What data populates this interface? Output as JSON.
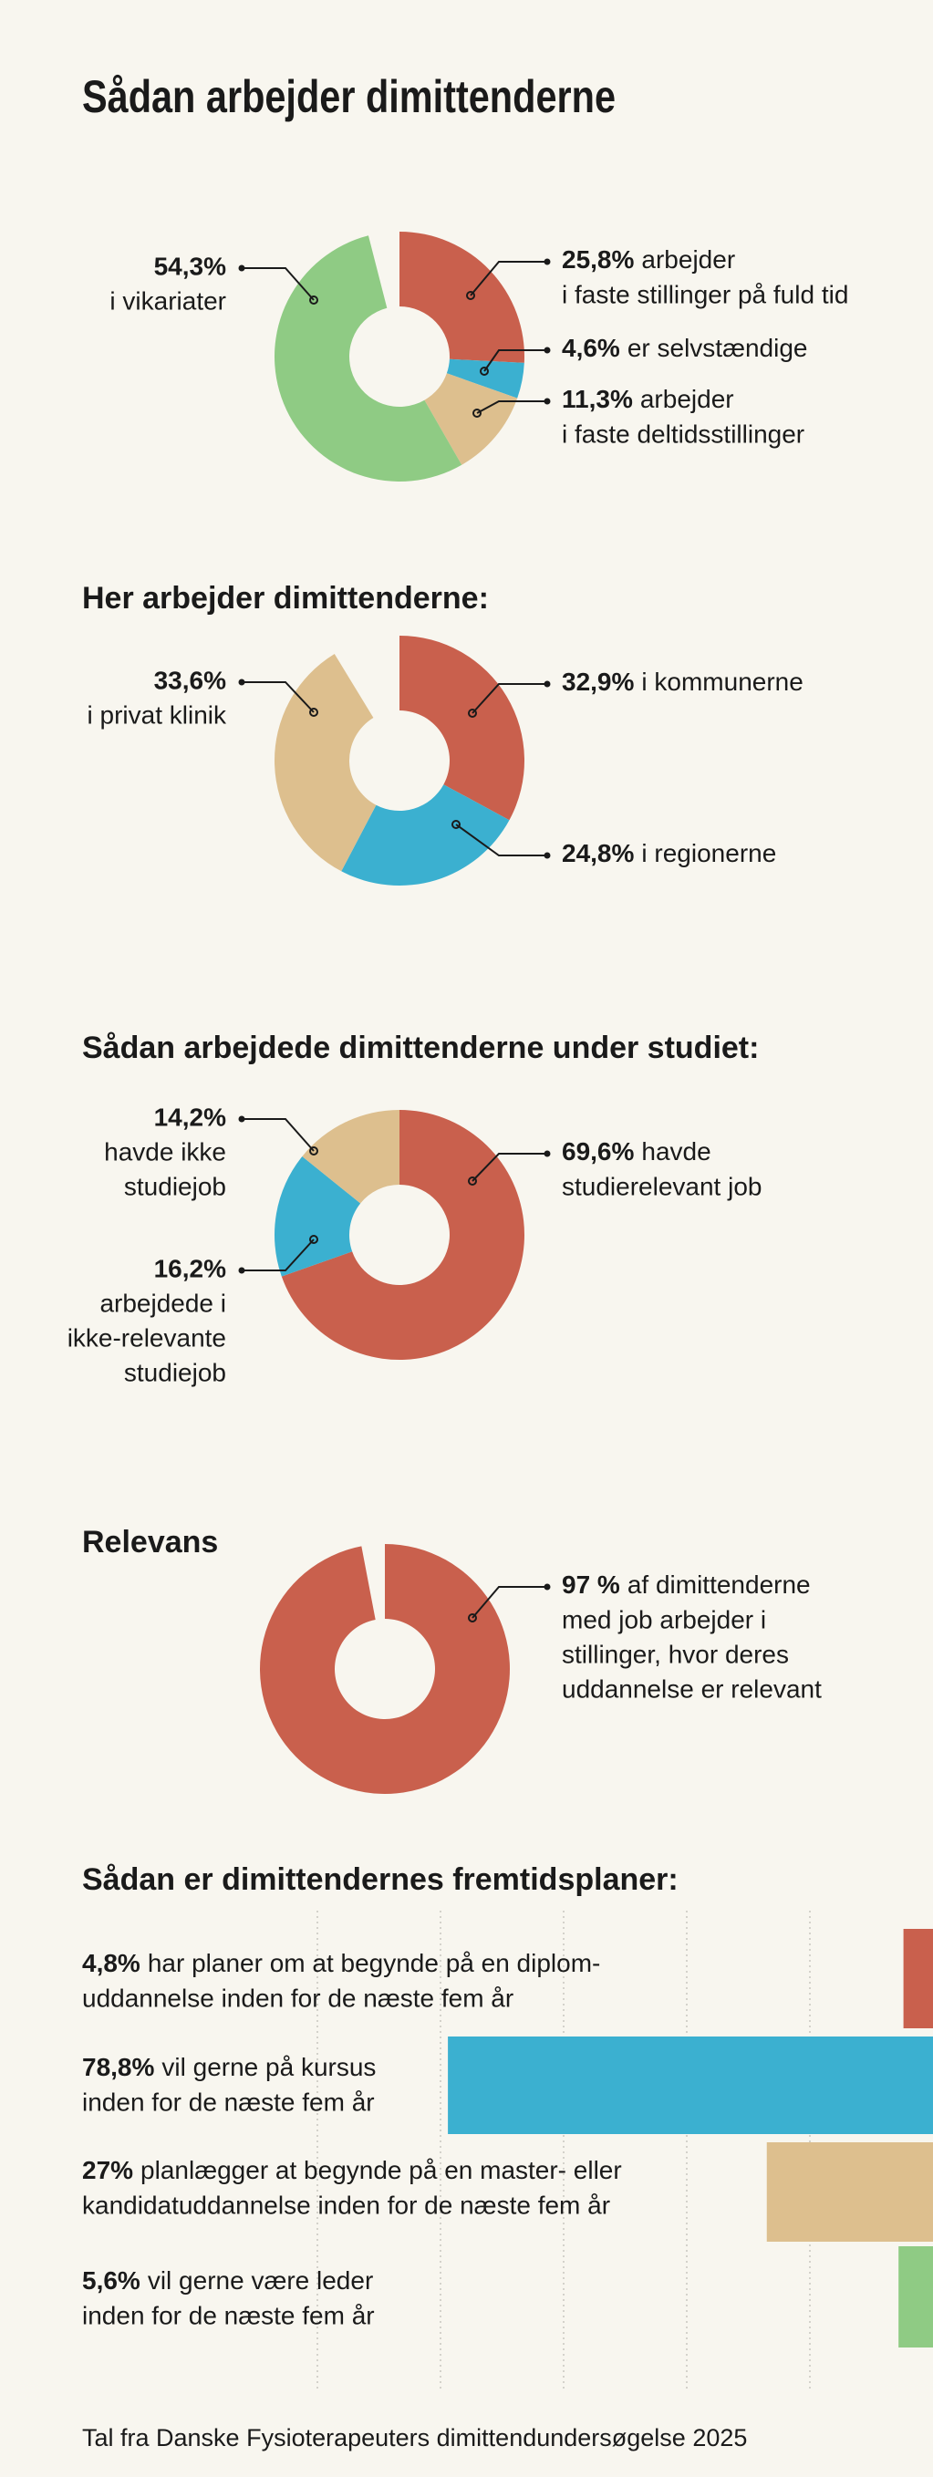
{
  "title": "Sådan arbejder dimittenderne",
  "source": "Tal fra Danske Fysioterapeuters dimittendundersøgelse 2025",
  "chart_data": [
    {
      "type": "pie",
      "donut": true,
      "categories": [
        [
          "arbejder",
          "i faste stillinger på fuld tid"
        ],
        [
          "er selvstændige"
        ],
        [
          "arbejder",
          "i faste deltidsstillinger"
        ],
        [
          "i vikariater"
        ]
      ],
      "values": [
        25.8,
        4.6,
        11.3,
        54.3
      ],
      "value_labels": [
        "25,8%",
        "4,6%",
        "11,3%",
        "54,3%"
      ],
      "colors": [
        "#c9604d",
        "#3bb0d0",
        "#ddbf8e",
        "#8fcb84"
      ]
    },
    {
      "type": "pie",
      "donut": true,
      "title": "Her arbejder dimittenderne:",
      "categories": [
        [
          "i kommunerne"
        ],
        [
          "i regionerne"
        ],
        [
          "i privat klinik"
        ]
      ],
      "values": [
        32.9,
        24.8,
        33.6
      ],
      "value_labels": [
        "32,9%",
        "24,8%",
        "33,6%"
      ],
      "colors": [
        "#c9604d",
        "#3bb0d0",
        "#ddbf8e"
      ]
    },
    {
      "type": "pie",
      "donut": true,
      "title": "Sådan arbejdede dimittenderne under studiet:",
      "categories": [
        [
          "havde",
          "studierelevant job"
        ],
        [
          "arbejdede i",
          "ikke-relevante",
          "studiejob"
        ],
        [
          "havde ikke",
          "studiejob"
        ]
      ],
      "values": [
        69.6,
        16.2,
        14.2
      ],
      "value_labels": [
        "69,6%",
        "16,2%",
        "14,2%"
      ],
      "colors": [
        "#c9604d",
        "#3bb0d0",
        "#ddbf8e"
      ]
    },
    {
      "type": "pie",
      "donut": true,
      "title": "Relevans",
      "categories": [
        [
          "af dimittenderne",
          "med job arbejder i",
          "stillinger, hvor deres",
          "uddannelse er relevant"
        ]
      ],
      "values": [
        97
      ],
      "value_labels": [
        "97 %"
      ],
      "colors": [
        "#c9604d"
      ]
    },
    {
      "type": "bar",
      "orientation": "horizontal",
      "title": "Sådan er dimittendernes fremtidsplaner:",
      "categories": [
        [
          "har planer om at begynde på en diplom-",
          "uddannelse inden for de næste fem år"
        ],
        [
          "vil gerne på kursus",
          "inden for de næste fem år"
        ],
        [
          "planlægger at begynde på en master- eller",
          "kandidatuddannelse inden for de næste fem år"
        ],
        [
          "vil gerne være leder",
          "inden for de næste fem år"
        ]
      ],
      "values": [
        4.8,
        78.8,
        27,
        5.6
      ],
      "value_labels": [
        "4,8%",
        "78,8%",
        "27%",
        "5,6%"
      ],
      "colors": [
        "#c9604d",
        "#3bb0d0",
        "#ddbf8e",
        "#8fcb84"
      ],
      "xlim": [
        0,
        100
      ],
      "xticks": [
        20,
        40,
        60,
        80,
        100
      ],
      "grid": true
    }
  ]
}
